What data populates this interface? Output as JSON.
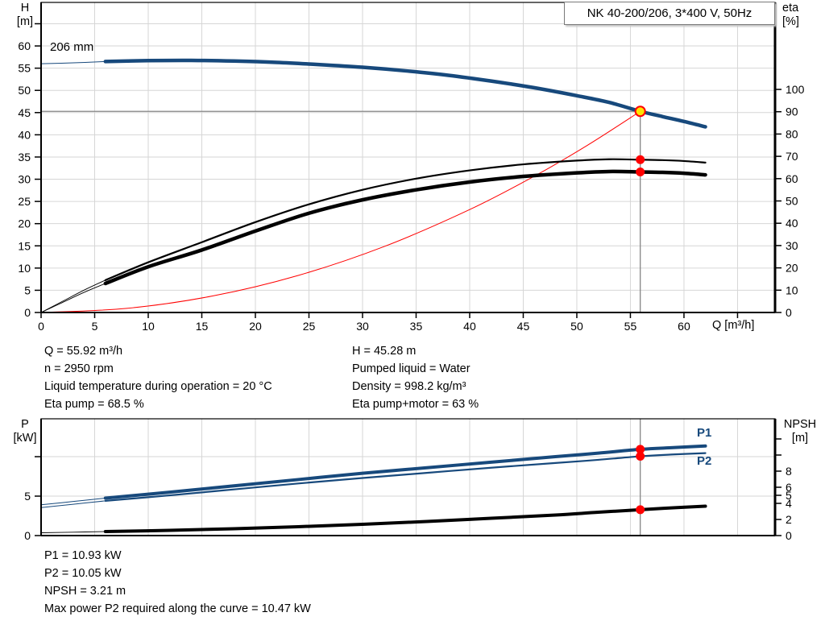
{
  "title_box": {
    "text": "NK 40-200/206, 3*400 V, 50Hz"
  },
  "colors": {
    "curve_blue": "#17497c",
    "curve_black": "#000000",
    "system_red": "#ff0000",
    "dot_red": "#ff0000",
    "dot_yellow": "#ffe400",
    "grid": "#d6d6d6",
    "marker_line": "#858585",
    "axis": "#000000"
  },
  "info_top": {
    "left": [
      "Q = 55.92 m³/h",
      "n = 2950 rpm",
      "Liquid temperature during operation = 20 °C",
      "Eta pump = 68.5 %"
    ],
    "right": [
      "H = 45.28 m",
      "Pumped liquid = Water",
      "Density = 998.2 kg/m³",
      "Eta pump+motor = 63 %"
    ]
  },
  "info_bottom": [
    "P1 = 10.93 kW",
    "P2 = 10.05 kW",
    "NPSH = 3.21 m",
    "Max power P2 required along the curve = 10.47 kW"
  ],
  "chart_data": [
    {
      "type": "line",
      "title": "NK 40-200/206, 3*400 V, 50Hz",
      "x_axis": {
        "label": "Q [m³/h]",
        "min": 0,
        "max": 68.5,
        "marks": true,
        "grid": true,
        "ticks": [
          {
            "v": 0,
            "l": "0"
          },
          {
            "v": 5,
            "l": "5"
          },
          {
            "v": 10,
            "l": "10"
          },
          {
            "v": 15,
            "l": "15"
          },
          {
            "v": 20,
            "l": "20"
          },
          {
            "v": 25,
            "l": "25"
          },
          {
            "v": 30,
            "l": "30"
          },
          {
            "v": 35,
            "l": "35"
          },
          {
            "v": 40,
            "l": "40"
          },
          {
            "v": 45,
            "l": "45"
          },
          {
            "v": 50,
            "l": "50"
          },
          {
            "v": 55,
            "l": "55"
          },
          {
            "v": 60,
            "l": "60"
          },
          {
            "v": 65,
            "l": ""
          }
        ]
      },
      "y_left": {
        "header": [
          "H",
          "[m]"
        ],
        "min": 0,
        "max": 69.8,
        "grid": true,
        "ticks": [
          {
            "v": 0,
            "l": "0"
          },
          {
            "v": 5,
            "l": "5"
          },
          {
            "v": 10,
            "l": "10"
          },
          {
            "v": 15,
            "l": "15"
          },
          {
            "v": 20,
            "l": "20"
          },
          {
            "v": 25,
            "l": "25"
          },
          {
            "v": 30,
            "l": "30"
          },
          {
            "v": 35,
            "l": "35"
          },
          {
            "v": 40,
            "l": "40"
          },
          {
            "v": 45,
            "l": "45"
          },
          {
            "v": 50,
            "l": "50"
          },
          {
            "v": 55,
            "l": "55"
          },
          {
            "v": 60,
            "l": "60"
          },
          {
            "v": 65,
            "l": ""
          }
        ]
      },
      "y_right": {
        "header": [
          "eta",
          "[%]"
        ],
        "min": 0,
        "max": 139,
        "grid": false,
        "ticks": [
          {
            "v": 0,
            "l": "0"
          },
          {
            "v": 10,
            "l": "10"
          },
          {
            "v": 20,
            "l": "20"
          },
          {
            "v": 30,
            "l": "30"
          },
          {
            "v": 40,
            "l": "40"
          },
          {
            "v": 50,
            "l": "50"
          },
          {
            "v": 60,
            "l": "60"
          },
          {
            "v": 70,
            "l": "70"
          },
          {
            "v": 80,
            "l": "80"
          },
          {
            "v": 90,
            "l": "90"
          },
          {
            "v": 100,
            "l": "100"
          }
        ]
      },
      "series": [
        {
          "name": "head-curve",
          "label": "206 mm",
          "axis": "left",
          "color": "#17497c",
          "width": 4.5,
          "lead_width": 1,
          "lead": [
            [
              0,
              56.0
            ],
            [
              3,
              56.2
            ],
            [
              6,
              56.5
            ]
          ],
          "points": [
            [
              6,
              56.5
            ],
            [
              10,
              56.7
            ],
            [
              14,
              56.75
            ],
            [
              18,
              56.6
            ],
            [
              22,
              56.3
            ],
            [
              26,
              55.8
            ],
            [
              30,
              55.2
            ],
            [
              34,
              54.4
            ],
            [
              38,
              53.4
            ],
            [
              42,
              52.1
            ],
            [
              46,
              50.6
            ],
            [
              50,
              48.8
            ],
            [
              53,
              47.3
            ],
            [
              55.92,
              45.28
            ],
            [
              58,
              44.1
            ],
            [
              60,
              43.0
            ],
            [
              62,
              41.8
            ]
          ]
        },
        {
          "name": "eta-pump-curve",
          "label": "",
          "axis": "right",
          "color": "#000000",
          "width": 2.2,
          "lead_width": 0.9,
          "lead": [
            [
              0,
              0
            ],
            [
              2,
              5
            ],
            [
              4,
              10
            ],
            [
              6,
              14.5
            ]
          ],
          "points": [
            [
              6,
              14.5
            ],
            [
              10,
              22.5
            ],
            [
              15,
              31.5
            ],
            [
              20,
              40.5
            ],
            [
              25,
              48.5
            ],
            [
              30,
              55
            ],
            [
              35,
              60
            ],
            [
              40,
              63.7
            ],
            [
              45,
              66.4
            ],
            [
              50,
              68.1
            ],
            [
              53,
              68.7
            ],
            [
              55.92,
              68.5
            ],
            [
              58,
              68.3
            ],
            [
              60,
              67.9
            ],
            [
              62,
              67.2
            ]
          ]
        },
        {
          "name": "eta-pump-motor-curve",
          "label": "",
          "axis": "right",
          "color": "#000000",
          "width": 4.5,
          "lead_width": 0.9,
          "lead": [
            [
              0,
              0
            ],
            [
              2,
              4.5
            ],
            [
              4,
              9
            ],
            [
              6,
              13
            ]
          ],
          "points": [
            [
              6,
              13
            ],
            [
              10,
              20.5
            ],
            [
              15,
              28
            ],
            [
              20,
              36.5
            ],
            [
              25,
              44.5
            ],
            [
              30,
              50.5
            ],
            [
              35,
              55
            ],
            [
              40,
              58.5
            ],
            [
              45,
              61
            ],
            [
              50,
              62.6
            ],
            [
              53,
              63.2
            ],
            [
              55.92,
              63
            ],
            [
              58,
              62.8
            ],
            [
              60,
              62.4
            ],
            [
              62,
              61.7
            ]
          ]
        },
        {
          "name": "system-curve",
          "label": "",
          "axis": "left",
          "color": "#ff0000",
          "width": 1,
          "lead_width": 1,
          "lead": null,
          "points": [
            [
              0,
              0
            ],
            [
              8,
              0.93
            ],
            [
              16,
              3.71
            ],
            [
              24,
              8.34
            ],
            [
              32,
              14.83
            ],
            [
              40,
              23.17
            ],
            [
              46,
              30.64
            ],
            [
              51,
              37.66
            ],
            [
              55.92,
              45.28
            ]
          ]
        }
      ],
      "duty_point": {
        "q": 55.92,
        "h": 45.28,
        "eta_pump": 68.5,
        "eta_pump_motor": 63,
        "hline": true,
        "vline": true,
        "points": [
          {
            "axis": "left",
            "v": 45.28,
            "style": "yellow"
          },
          {
            "axis": "right",
            "v": 68.5,
            "style": "red"
          },
          {
            "axis": "right",
            "v": 63,
            "style": "red"
          }
        ]
      }
    },
    {
      "type": "line",
      "title": "",
      "x_axis": {
        "label": "",
        "min": 0,
        "max": 68.5,
        "marks": false,
        "grid": true,
        "ticks": [
          {
            "v": 5,
            "l": ""
          },
          {
            "v": 10,
            "l": ""
          },
          {
            "v": 15,
            "l": ""
          },
          {
            "v": 20,
            "l": ""
          },
          {
            "v": 25,
            "l": ""
          },
          {
            "v": 30,
            "l": ""
          },
          {
            "v": 35,
            "l": ""
          },
          {
            "v": 40,
            "l": ""
          },
          {
            "v": 45,
            "l": ""
          },
          {
            "v": 50,
            "l": ""
          },
          {
            "v": 55,
            "l": ""
          },
          {
            "v": 60,
            "l": ""
          },
          {
            "v": 65,
            "l": ""
          }
        ]
      },
      "y_left": {
        "header": [
          "P",
          "[kW]"
        ],
        "min": 0,
        "max": 14.8,
        "grid": true,
        "ticks": [
          {
            "v": 0,
            "l": "0"
          },
          {
            "v": 5,
            "l": "5"
          },
          {
            "v": 10,
            "l": ""
          }
        ]
      },
      "y_right": {
        "header": [
          "NPSH",
          "[m]"
        ],
        "min": 0,
        "max": 14.5,
        "grid": false,
        "ticks": [
          {
            "v": 0,
            "l": "0"
          },
          {
            "v": 2,
            "l": "2"
          },
          {
            "v": 4,
            "l": "4"
          },
          {
            "v": 5,
            "l": "5"
          },
          {
            "v": 6,
            "l": "6"
          },
          {
            "v": 8,
            "l": "8"
          },
          {
            "v": 10,
            "l": ""
          },
          {
            "v": 12,
            "l": ""
          }
        ]
      },
      "series": [
        {
          "name": "p1-curve",
          "label": "P1",
          "axis": "left",
          "color": "#17497c",
          "width": 4,
          "lead_width": 1,
          "lead": [
            [
              0,
              3.9
            ],
            [
              3,
              4.32
            ],
            [
              6,
              4.75
            ]
          ],
          "points": [
            [
              6,
              4.75
            ],
            [
              12,
              5.5
            ],
            [
              18,
              6.3
            ],
            [
              24,
              7.1
            ],
            [
              30,
              7.9
            ],
            [
              36,
              8.6
            ],
            [
              42,
              9.3
            ],
            [
              48,
              10.0
            ],
            [
              52,
              10.45
            ],
            [
              55.92,
              10.93
            ],
            [
              59,
              11.15
            ],
            [
              62,
              11.35
            ]
          ]
        },
        {
          "name": "p2-curve",
          "label": "P2",
          "axis": "left",
          "color": "#17497c",
          "width": 2.2,
          "lead_width": 1,
          "lead": [
            [
              0,
              3.55
            ],
            [
              3,
              3.97
            ],
            [
              6,
              4.4
            ]
          ],
          "points": [
            [
              6,
              4.4
            ],
            [
              12,
              5.1
            ],
            [
              18,
              5.85
            ],
            [
              24,
              6.6
            ],
            [
              30,
              7.3
            ],
            [
              36,
              7.95
            ],
            [
              42,
              8.6
            ],
            [
              48,
              9.2
            ],
            [
              52,
              9.6
            ],
            [
              55.92,
              10.05
            ],
            [
              59,
              10.28
            ],
            [
              62,
              10.45
            ]
          ]
        },
        {
          "name": "npsh-curve",
          "label": "",
          "axis": "right",
          "color": "#000000",
          "width": 4,
          "lead_width": 0.9,
          "lead": [
            [
              0,
              0.35
            ],
            [
              3,
              0.42
            ],
            [
              6,
              0.5
            ]
          ],
          "points": [
            [
              6,
              0.5
            ],
            [
              12,
              0.65
            ],
            [
              18,
              0.85
            ],
            [
              24,
              1.1
            ],
            [
              30,
              1.4
            ],
            [
              36,
              1.75
            ],
            [
              42,
              2.15
            ],
            [
              48,
              2.55
            ],
            [
              52,
              2.9
            ],
            [
              55.92,
              3.21
            ],
            [
              59,
              3.45
            ],
            [
              62,
              3.65
            ]
          ]
        }
      ],
      "duty_point": {
        "q": 55.92,
        "p1": 10.93,
        "p2": 10.05,
        "npsh": 3.21,
        "hline": false,
        "vline": true,
        "points": [
          {
            "axis": "left",
            "v": 10.93,
            "style": "red"
          },
          {
            "axis": "left",
            "v": 10.05,
            "style": "red"
          },
          {
            "axis": "right",
            "v": 3.21,
            "style": "red"
          }
        ]
      }
    }
  ]
}
